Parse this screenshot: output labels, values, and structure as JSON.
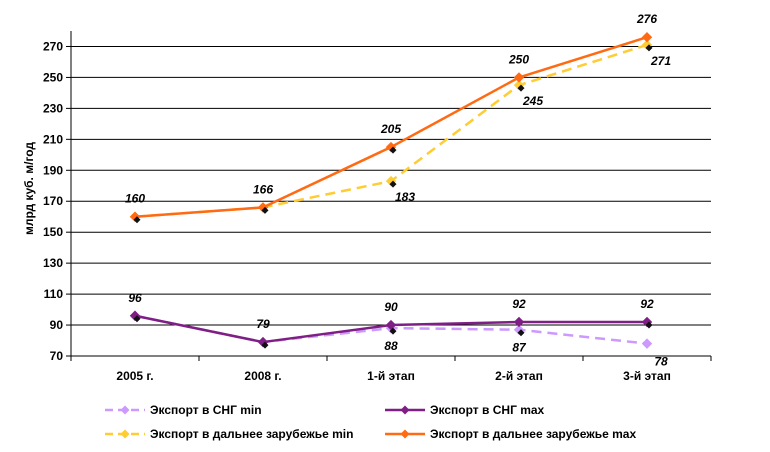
{
  "chart_data": {
    "type": "line",
    "title": "",
    "xlabel": "",
    "ylabel": "млрд куб. м/год",
    "categories": [
      "2005 г.",
      "2008 г.",
      "1-й этап",
      "2-й этап",
      "3-й этап"
    ],
    "ylim": [
      70,
      280
    ],
    "yticks": [
      70,
      90,
      110,
      130,
      150,
      170,
      190,
      210,
      230,
      250,
      270
    ],
    "grid": "horizontal",
    "legend_position": "bottom",
    "series": [
      {
        "name": "Экспорт в СНГ min",
        "values": [
          96,
          79,
          88,
          87,
          78
        ],
        "color": "#cc99ff",
        "style": "dashed",
        "marker": "diamond",
        "labels": [
          "",
          "",
          "88",
          "87",
          "78"
        ],
        "label_side": [
          "",
          "",
          "below",
          "below",
          "right"
        ]
      },
      {
        "name": "Экспорт в СНГ max",
        "values": [
          96,
          79,
          90,
          92,
          92
        ],
        "color": "#7f1f85",
        "style": "solid",
        "marker": "diamond",
        "labels": [
          "96",
          "79",
          "90",
          "92",
          "92"
        ],
        "label_side": [
          "above",
          "above",
          "above",
          "above",
          "above"
        ]
      },
      {
        "name": "Экспорт в дальнее зарубежье min",
        "values": [
          160,
          166,
          183,
          245,
          271
        ],
        "color": "#ffcc33",
        "style": "dashed",
        "marker": "diamond",
        "labels": [
          "",
          "",
          "183",
          "245",
          "271"
        ],
        "label_side": [
          "",
          "",
          "below-right",
          "below-right",
          "below-right"
        ]
      },
      {
        "name": "Экспорт в дальнее зарубежье max",
        "values": [
          160,
          166,
          205,
          250,
          276
        ],
        "color": "#ff6a13",
        "style": "solid",
        "marker": "diamond",
        "labels": [
          "160",
          "166",
          "205",
          "250",
          "276"
        ],
        "label_side": [
          "above",
          "above",
          "above",
          "above",
          "above"
        ]
      }
    ]
  }
}
